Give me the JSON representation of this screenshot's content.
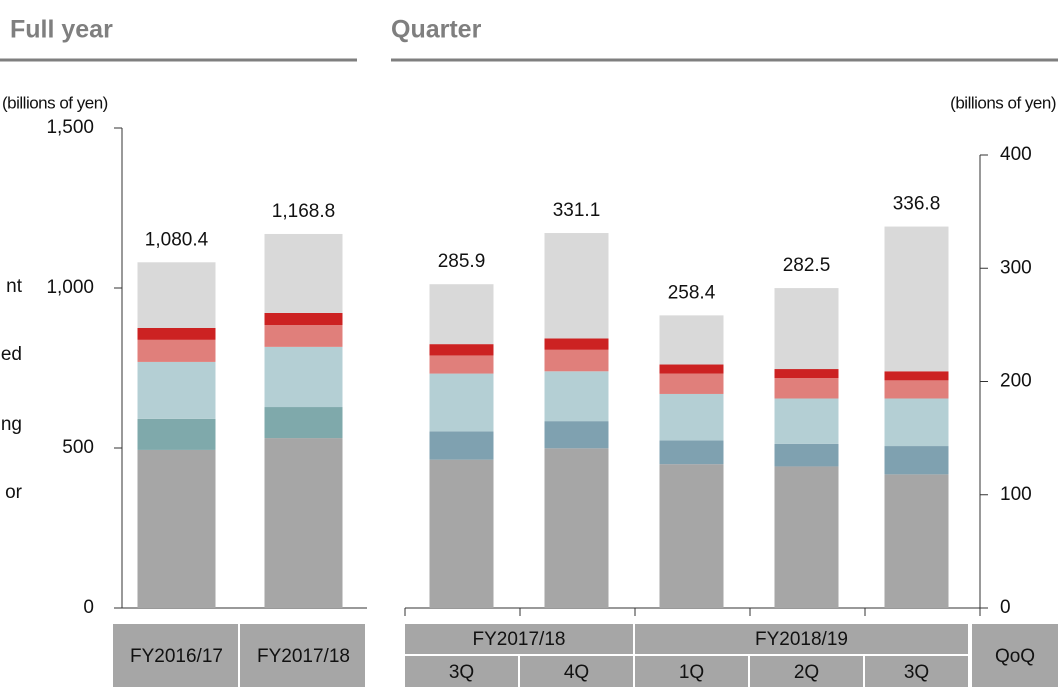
{
  "chart_data": [
    {
      "type": "stacked_bar",
      "title": "Full year",
      "unit_label": "(billions of yen)",
      "legend_fragments": [
        "nt",
        "ed",
        "ng",
        "or"
      ],
      "categories": [
        "FY2016/17",
        "FY2017/18"
      ],
      "series": [
        {
          "color": "#a6a6a6",
          "values": [
            494,
            531
          ]
        },
        {
          "color": "#7fa9ab",
          "values": [
            97,
            97
          ]
        },
        {
          "color": "#b4cfd4",
          "values": [
            178,
            188
          ]
        },
        {
          "color": "#e07f7b",
          "values": [
            69,
            68
          ]
        },
        {
          "color": "#cc2222",
          "values": [
            37,
            38
          ]
        },
        {
          "color": "#d9d9d9",
          "values": [
            205.4,
            246.8
          ]
        }
      ],
      "totals": [
        1080.4,
        1168.8
      ],
      "total_labels": [
        "1,080.4",
        "1,168.8"
      ],
      "ylim": [
        0,
        1500
      ],
      "yticks": [
        0,
        500,
        {
          "value": 1000,
          "label": "1,000"
        },
        {
          "value": 1500,
          "label": "1,500"
        }
      ]
    },
    {
      "type": "stacked_bar",
      "title": "Quarter",
      "unit_label": "(billions of yen)",
      "categories": [
        "3Q",
        "4Q",
        "1Q",
        "2Q",
        "3Q"
      ],
      "groups": [
        {
          "label": "FY2017/18",
          "size": 2
        },
        {
          "label": "FY2018/19",
          "size": 3
        }
      ],
      "extra_column": "QoQ",
      "series": [
        {
          "color": "#a6a6a6",
          "axis": "y2",
          "values": [
            131,
            141,
            127,
            125,
            118
          ]
        },
        {
          "color": "#7fa1b0",
          "axis": "y2",
          "values": [
            25,
            24,
            21,
            20,
            25
          ]
        },
        {
          "color": "#b4cfd4",
          "axis": "y2",
          "values": [
            51,
            44,
            41,
            40,
            42
          ]
        },
        {
          "color": "#e07f7b",
          "axis": "y2",
          "values": [
            16,
            19,
            18,
            18,
            16
          ]
        },
        {
          "color": "#cc2222",
          "axis": "y2",
          "values": [
            10,
            10,
            8,
            8,
            8
          ]
        },
        {
          "color": "#d9d9d9",
          "axis": "y2",
          "values": [
            52.9,
            93.1,
            43.4,
            71.5,
            127.8
          ]
        }
      ],
      "totals": [
        285.9,
        331.1,
        258.4,
        282.5,
        336.8
      ],
      "y2lim": [
        0,
        400
      ],
      "y2ticks": [
        0,
        100,
        200,
        300,
        400
      ]
    }
  ]
}
